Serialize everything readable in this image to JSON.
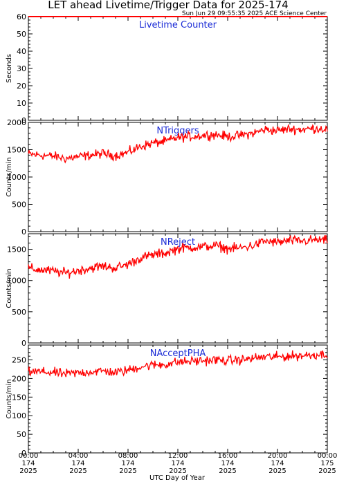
{
  "header": {
    "title": "LET ahead Livetime/Trigger Data for 2025-174",
    "timestamp": "Sun Jun 29 09:55:35 2025 ACE Science Center"
  },
  "colors": {
    "series": "#ff0000",
    "panel_label": "#1a2bd6",
    "axes": "#000000"
  },
  "x_axis": {
    "title": "UTC Day of Year",
    "ticks": [
      {
        "time": "00:00",
        "doy": "174",
        "year": "2025"
      },
      {
        "time": "04:00",
        "doy": "174",
        "year": "2025"
      },
      {
        "time": "08:00",
        "doy": "174",
        "year": "2025"
      },
      {
        "time": "12:00",
        "doy": "174",
        "year": "2025"
      },
      {
        "time": "16:00",
        "doy": "174",
        "year": "2025"
      },
      {
        "time": "20:00",
        "doy": "174",
        "year": "2025"
      },
      {
        "time": "00:00",
        "doy": "175",
        "year": "2025"
      }
    ]
  },
  "chart_data": [
    {
      "type": "line",
      "label": "Livetime Counter",
      "ylabel": "Seconds",
      "ylim": [
        0,
        60
      ],
      "yticks": [
        0,
        10,
        20,
        30,
        40,
        50,
        60
      ],
      "xlim_hours": [
        0,
        24
      ],
      "x_hours": [
        0,
        24
      ],
      "y": [
        60,
        60
      ],
      "noise": 0
    },
    {
      "type": "line",
      "label": "NTriggers",
      "ylabel": "Counts/min",
      "ylim": [
        0,
        2000
      ],
      "yticks": [
        0,
        500,
        1000,
        1500,
        2000
      ],
      "xlim_hours": [
        0,
        24
      ],
      "x_hours": [
        0,
        1,
        2,
        3,
        4,
        5,
        6,
        7,
        8,
        9,
        10,
        11,
        12,
        13,
        14,
        15,
        16,
        17,
        18,
        19,
        20,
        21,
        22,
        23,
        24
      ],
      "y": [
        1420,
        1400,
        1380,
        1340,
        1370,
        1400,
        1430,
        1390,
        1450,
        1560,
        1620,
        1650,
        1720,
        1740,
        1760,
        1780,
        1740,
        1760,
        1800,
        1870,
        1850,
        1880,
        1870,
        1890,
        1880
      ],
      "noise": 60
    },
    {
      "type": "line",
      "label": "NReject",
      "ylabel": "Counts/min",
      "ylim": [
        0,
        1750
      ],
      "yticks": [
        0,
        500,
        1000,
        1500
      ],
      "xlim_hours": [
        0,
        24
      ],
      "x_hours": [
        0,
        1,
        2,
        3,
        4,
        5,
        6,
        7,
        8,
        9,
        10,
        11,
        12,
        13,
        14,
        15,
        16,
        17,
        18,
        19,
        20,
        21,
        22,
        23,
        24
      ],
      "y": [
        1190,
        1170,
        1150,
        1120,
        1160,
        1200,
        1230,
        1200,
        1260,
        1360,
        1410,
        1440,
        1510,
        1530,
        1540,
        1560,
        1510,
        1520,
        1560,
        1630,
        1610,
        1640,
        1630,
        1650,
        1640
      ],
      "noise": 55
    },
    {
      "type": "line",
      "label": "NAcceptPHA",
      "ylabel": "Counts/min",
      "ylim": [
        0,
        290
      ],
      "yticks": [
        0,
        50,
        100,
        150,
        200,
        250
      ],
      "xlim_hours": [
        0,
        24
      ],
      "x_hours": [
        0,
        1,
        2,
        3,
        4,
        5,
        6,
        7,
        8,
        9,
        10,
        11,
        12,
        13,
        14,
        15,
        16,
        17,
        18,
        19,
        20,
        21,
        22,
        23,
        24
      ],
      "y": [
        218,
        218,
        216,
        212,
        215,
        218,
        220,
        216,
        222,
        232,
        236,
        238,
        244,
        246,
        248,
        250,
        248,
        250,
        254,
        258,
        258,
        260,
        262,
        264,
        266
      ],
      "noise": 9
    }
  ]
}
